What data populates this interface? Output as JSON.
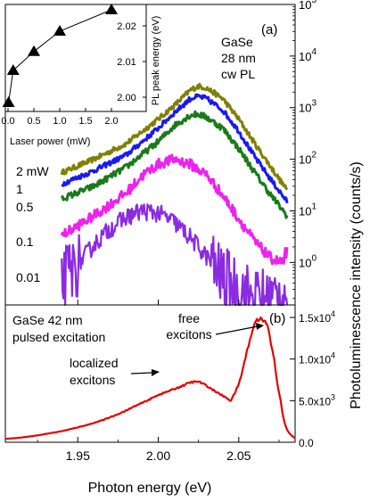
{
  "chart_data": [
    {
      "id": "a",
      "type": "line",
      "panel_label": "(a)",
      "annotation_lines": [
        "GaSe",
        "28 nm",
        "cw PL"
      ],
      "ylabel": "Photoluminescence intensity (counts/s)",
      "yscale": "log",
      "ylim": [
        0.15,
        100000
      ],
      "xlim": [
        1.905,
        2.085
      ],
      "y_ticks": [
        1,
        10,
        100,
        1000,
        10000,
        100000
      ],
      "y_tick_labels": [
        {
          "base": "10",
          "exp": "0"
        },
        {
          "base": "10",
          "exp": "1"
        },
        {
          "base": "10",
          "exp": "2"
        },
        {
          "base": "10",
          "exp": "3"
        },
        {
          "base": "10",
          "exp": "4"
        },
        {
          "base": "10",
          "exp": "5"
        }
      ],
      "series": [
        {
          "name": "2 mW",
          "color": "#808000",
          "noise": 0.05,
          "points": [
            [
              1.94,
              55
            ],
            [
              1.96,
              100
            ],
            [
              1.98,
              200
            ],
            [
              2.0,
              600
            ],
            [
              2.01,
              1100
            ],
            [
              2.02,
              2200
            ],
            [
              2.025,
              2600
            ],
            [
              2.03,
              2400
            ],
            [
              2.04,
              1500
            ],
            [
              2.05,
              600
            ],
            [
              2.06,
              200
            ],
            [
              2.07,
              70
            ],
            [
              2.08,
              25
            ]
          ]
        },
        {
          "name": "1",
          "color": "#1a1aee",
          "noise": 0.05,
          "points": [
            [
              1.94,
              33
            ],
            [
              1.96,
              60
            ],
            [
              1.98,
              120
            ],
            [
              2.0,
              400
            ],
            [
              2.01,
              800
            ],
            [
              2.02,
              1500
            ],
            [
              2.025,
              1650
            ],
            [
              2.03,
              1500
            ],
            [
              2.04,
              900
            ],
            [
              2.05,
              350
            ],
            [
              2.06,
              110
            ],
            [
              2.07,
              40
            ],
            [
              2.08,
              15
            ]
          ]
        },
        {
          "name": "0.5",
          "color": "#1a7a1a",
          "noise": 0.06,
          "points": [
            [
              1.94,
              17
            ],
            [
              1.96,
              30
            ],
            [
              1.98,
              70
            ],
            [
              2.0,
              220
            ],
            [
              2.01,
              450
            ],
            [
              2.02,
              720
            ],
            [
              2.025,
              750
            ],
            [
              2.03,
              650
            ],
            [
              2.04,
              400
            ],
            [
              2.05,
              160
            ],
            [
              2.06,
              55
            ],
            [
              2.07,
              20
            ],
            [
              2.08,
              8
            ]
          ]
        },
        {
          "name": "0.1",
          "color": "#ee22ee",
          "noise": 0.1,
          "points": [
            [
              1.94,
              3.3
            ],
            [
              1.96,
              8
            ],
            [
              1.98,
              22
            ],
            [
              1.99,
              48
            ],
            [
              2.0,
              80
            ],
            [
              2.01,
              100
            ],
            [
              2.02,
              80
            ],
            [
              2.03,
              50
            ],
            [
              2.04,
              20
            ],
            [
              2.05,
              7
            ],
            [
              2.06,
              2.5
            ],
            [
              2.07,
              1.2
            ],
            [
              2.08,
              0.9
            ]
          ]
        },
        {
          "name": "0.01",
          "color": "#8a2be2",
          "noise": 0.18,
          "points": [
            [
              1.94,
              0.45
            ],
            [
              1.95,
              0.9
            ],
            [
              1.96,
              2.2
            ],
            [
              1.97,
              4.5
            ],
            [
              1.98,
              7.5
            ],
            [
              1.99,
              10
            ],
            [
              2.0,
              9
            ],
            [
              2.01,
              6
            ],
            [
              2.02,
              3
            ],
            [
              2.03,
              1.3
            ],
            [
              2.04,
              0.5
            ],
            [
              2.05,
              0.3
            ],
            [
              2.06,
              0.2
            ],
            [
              2.07,
              0.2
            ],
            [
              2.08,
              0.25
            ]
          ]
        }
      ]
    },
    {
      "id": "inset",
      "type": "scatter",
      "xlabel": "Laser power (mW)",
      "ylabel": "PL peak energy (eV)",
      "xlim": [
        0,
        2
      ],
      "ylim": [
        1.996,
        2.026
      ],
      "x_ticks": [
        0,
        0.5,
        1,
        1.5,
        2
      ],
      "x_tick_labels": [
        "0.0",
        "0.5",
        "1.0",
        "1.5",
        "2.0"
      ],
      "y_ticks": [
        2.0,
        2.01,
        2.02
      ],
      "y_tick_labels": [
        "2.00",
        "2.01",
        "2.02"
      ],
      "color": "#000000",
      "x": [
        0.01,
        0.1,
        0.5,
        1,
        2
      ],
      "y": [
        1.9985,
        2.0075,
        2.0128,
        2.0185,
        2.0245
      ]
    },
    {
      "id": "b",
      "type": "line",
      "panel_label": "(b)",
      "annotation_lines": [
        "GaSe 42 nm",
        "pulsed excitation"
      ],
      "callouts": [
        {
          "lines": [
            "localized",
            "excitons"
          ],
          "target": [
            2.025,
            7000
          ]
        },
        {
          "lines": [
            "free",
            "excitons"
          ],
          "target": [
            2.06,
            15000
          ]
        }
      ],
      "xlabel": "Photon energy (eV)",
      "xlim": [
        1.905,
        2.085
      ],
      "ylim": [
        0,
        16500
      ],
      "x_ticks": [
        1.95,
        2.0,
        2.05
      ],
      "x_tick_labels": [
        "1.95",
        "2.00",
        "2.05"
      ],
      "y_ticks": [
        0,
        5000,
        10000,
        15000
      ],
      "y_tick_labels": [
        {
          "base": "0.0",
          "exp": ""
        },
        {
          "base": "5.0x10",
          "exp": "3"
        },
        {
          "base": "1.0x10",
          "exp": "4"
        },
        {
          "base": "1.5x10",
          "exp": "4"
        }
      ],
      "series": [
        {
          "name": "",
          "color": "#e60000",
          "noise": 0.015,
          "points": [
            [
              1.905,
              400
            ],
            [
              1.93,
              1000
            ],
            [
              1.95,
              1800
            ],
            [
              1.97,
              3000
            ],
            [
              1.985,
              4300
            ],
            [
              2.0,
              5700
            ],
            [
              2.01,
              6400
            ],
            [
              2.02,
              7200
            ],
            [
              2.025,
              7300
            ],
            [
              2.03,
              6800
            ],
            [
              2.04,
              5600
            ],
            [
              2.045,
              5000
            ],
            [
              2.05,
              7000
            ],
            [
              2.055,
              11000
            ],
            [
              2.06,
              14500
            ],
            [
              2.064,
              15000
            ],
            [
              2.068,
              14000
            ],
            [
              2.072,
              10000
            ],
            [
              2.076,
              5000
            ],
            [
              2.08,
              1500
            ],
            [
              2.085,
              500
            ]
          ]
        }
      ]
    }
  ]
}
